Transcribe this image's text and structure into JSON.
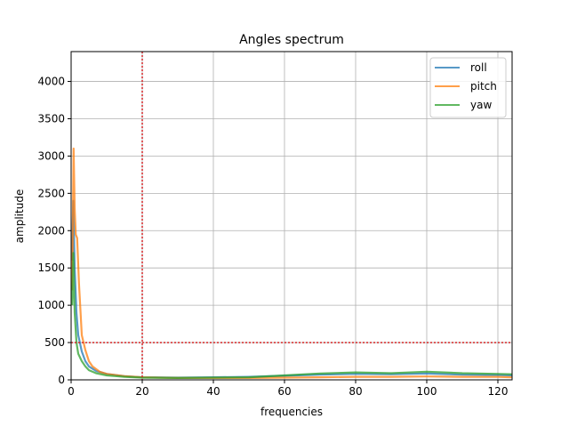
{
  "chart_data": {
    "type": "line",
    "title": "Angles spectrum",
    "xlabel": "frequencies",
    "ylabel": "amplitude",
    "xlim": [
      0,
      124
    ],
    "ylim": [
      0,
      4400
    ],
    "x_ticks": [
      0,
      20,
      40,
      60,
      80,
      100,
      120
    ],
    "y_ticks": [
      0,
      500,
      1000,
      1500,
      2000,
      2500,
      3000,
      3500,
      4000
    ],
    "grid": true,
    "legend_position": "top-right",
    "reference_lines": {
      "vertical_x": 20,
      "horizontal_y": 500,
      "color": "#d62728",
      "style": "dotted"
    },
    "series": [
      {
        "name": "roll",
        "color": "#1f77b4",
        "points": [
          [
            0.3,
            1600
          ],
          [
            0.6,
            2400
          ],
          [
            1.0,
            1500
          ],
          [
            1.5,
            900
          ],
          [
            2.0,
            600
          ],
          [
            3.0,
            380
          ],
          [
            4.0,
            250
          ],
          [
            5.0,
            180
          ],
          [
            7.0,
            120
          ],
          [
            10.0,
            80
          ],
          [
            15.0,
            50
          ],
          [
            20.0,
            35
          ],
          [
            30.0,
            30
          ],
          [
            40.0,
            35
          ],
          [
            50.0,
            40
          ],
          [
            60.0,
            55
          ],
          [
            70.0,
            70
          ],
          [
            80.0,
            80
          ],
          [
            90.0,
            75
          ],
          [
            100.0,
            85
          ],
          [
            110.0,
            70
          ],
          [
            120.0,
            65
          ],
          [
            124.0,
            60
          ]
        ]
      },
      {
        "name": "pitch",
        "color": "#ff7f0e",
        "points": [
          [
            0.3,
            1200
          ],
          [
            0.7,
            3100
          ],
          [
            1.0,
            2300
          ],
          [
            1.3,
            1950
          ],
          [
            1.7,
            1900
          ],
          [
            2.2,
            1300
          ],
          [
            3.0,
            600
          ],
          [
            4.0,
            400
          ],
          [
            5.0,
            250
          ],
          [
            6.0,
            180
          ],
          [
            8.0,
            110
          ],
          [
            10.0,
            80
          ],
          [
            15.0,
            50
          ],
          [
            20.0,
            35
          ],
          [
            30.0,
            25
          ],
          [
            40.0,
            25
          ],
          [
            50.0,
            25
          ],
          [
            60.0,
            30
          ],
          [
            70.0,
            35
          ],
          [
            80.0,
            40
          ],
          [
            90.0,
            40
          ],
          [
            100.0,
            45
          ],
          [
            110.0,
            40
          ],
          [
            120.0,
            40
          ],
          [
            124.0,
            35
          ]
        ]
      },
      {
        "name": "yaw",
        "color": "#2ca02c",
        "points": [
          [
            0.3,
            1000
          ],
          [
            0.6,
            1700
          ],
          [
            1.0,
            900
          ],
          [
            1.5,
            500
          ],
          [
            2.0,
            350
          ],
          [
            3.0,
            250
          ],
          [
            4.0,
            180
          ],
          [
            5.0,
            130
          ],
          [
            7.0,
            90
          ],
          [
            10.0,
            60
          ],
          [
            15.0,
            40
          ],
          [
            20.0,
            30
          ],
          [
            30.0,
            25
          ],
          [
            40.0,
            30
          ],
          [
            50.0,
            35
          ],
          [
            60.0,
            60
          ],
          [
            70.0,
            85
          ],
          [
            80.0,
            100
          ],
          [
            90.0,
            90
          ],
          [
            100.0,
            110
          ],
          [
            110.0,
            90
          ],
          [
            120.0,
            80
          ],
          [
            124.0,
            75
          ]
        ]
      }
    ]
  }
}
